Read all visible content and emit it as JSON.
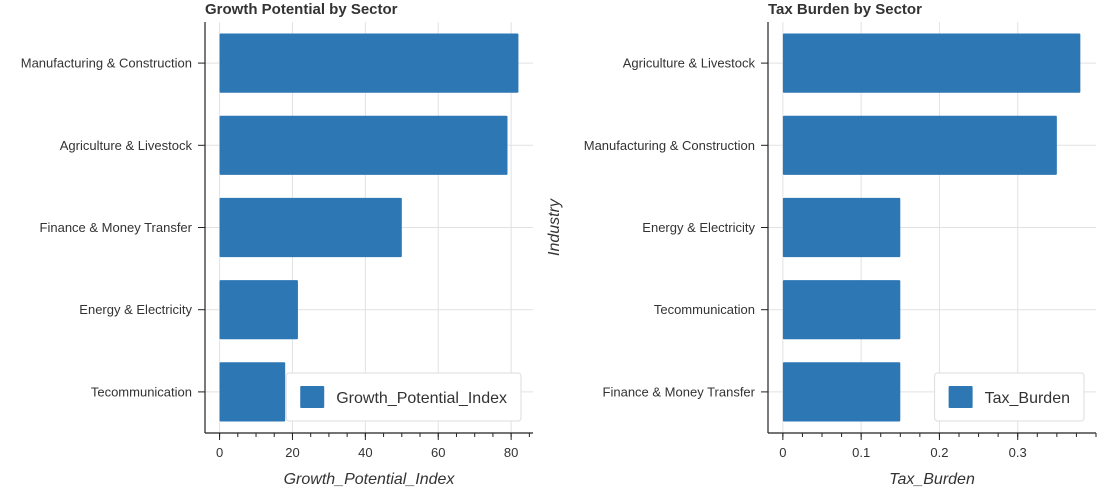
{
  "chart_data": [
    {
      "type": "bar",
      "orientation": "horizontal",
      "title": "Growth Potential by Sector",
      "xlabel": "Growth_Potential_Index",
      "ylabel": "",
      "categories": [
        "Manufacturing & Construction",
        "Agriculture & Livestock",
        "Finance & Money Transfer",
        "Energy & Electricity",
        "Tecommunication"
      ],
      "series": [
        {
          "name": "Growth_Potential_Index",
          "values": [
            82,
            79,
            50,
            21.5,
            18
          ]
        }
      ],
      "xlim": [
        -4,
        86
      ],
      "xticks": [
        0,
        20,
        40,
        60,
        80
      ],
      "xticks_minor_step": 5,
      "grid": true,
      "legend": "bottom-right",
      "color": "#2e77b5"
    },
    {
      "type": "bar",
      "orientation": "horizontal",
      "title": "Tax Burden by Sector",
      "xlabel": "Tax_Burden",
      "ylabel": "Industry",
      "categories": [
        "Agriculture & Livestock",
        "Manufacturing & Construction",
        "Energy & Electricity",
        "Tecommunication",
        "Finance & Money Transfer"
      ],
      "series": [
        {
          "name": "Tax_Burden",
          "values": [
            0.38,
            0.35,
            0.15,
            0.15,
            0.15
          ]
        }
      ],
      "xlim": [
        -0.019,
        0.4
      ],
      "xticks": [
        0,
        0.1,
        0.2,
        0.3
      ],
      "xticks_minor_step": 0.025,
      "grid": true,
      "legend": "bottom-right",
      "color": "#2e77b5"
    }
  ]
}
